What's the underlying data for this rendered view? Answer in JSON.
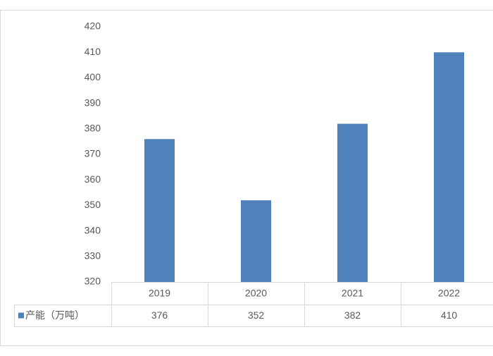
{
  "chart_data": {
    "type": "bar",
    "categories": [
      "2019",
      "2020",
      "2021",
      "2022"
    ],
    "series": [
      {
        "name": "产能（万吨）",
        "color": "#4f81bd",
        "values": [
          376,
          352,
          382,
          410
        ]
      }
    ],
    "ylim": [
      320,
      420
    ],
    "yticks": [
      320,
      330,
      340,
      350,
      360,
      370,
      380,
      390,
      400,
      410,
      420
    ],
    "grid": false,
    "legend": "data-table"
  }
}
